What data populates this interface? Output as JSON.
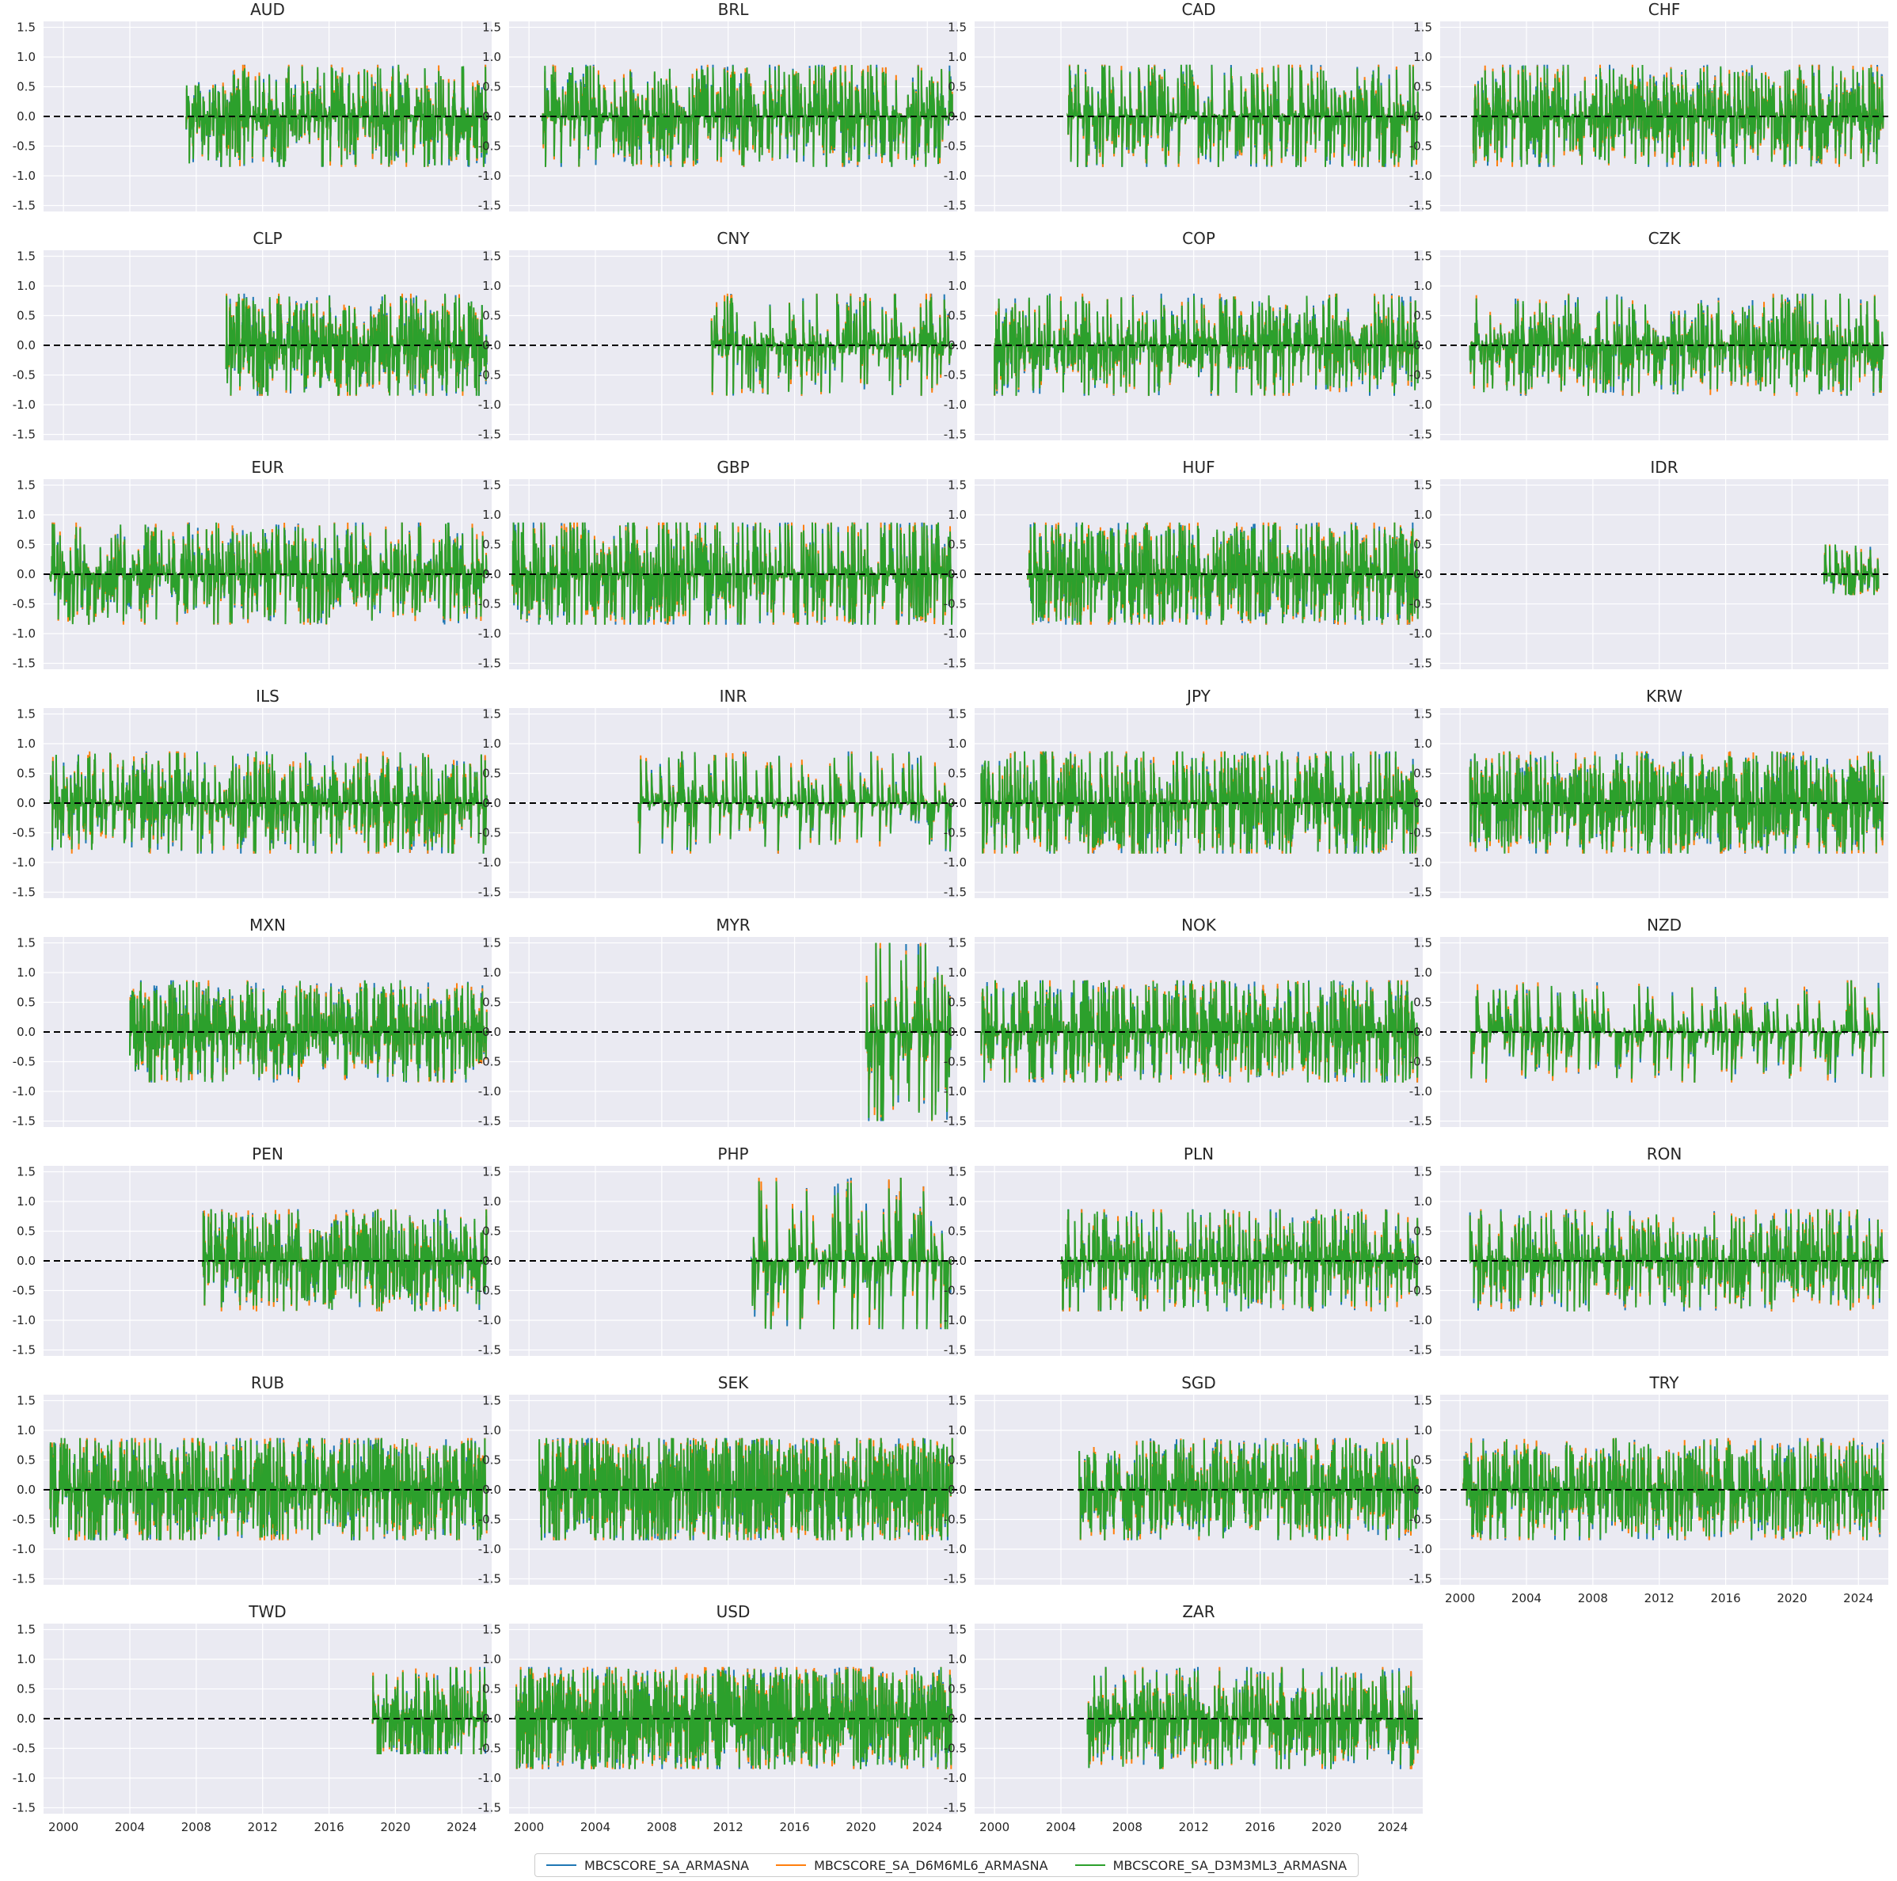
{
  "chart_data": {
    "type": "line",
    "layout": "small-multiples",
    "columns": 4,
    "shared_y_range": [
      -1.6,
      1.6
    ],
    "y_ticks": [
      -1.5,
      -1.0,
      -0.5,
      0.0,
      0.5,
      1.0,
      1.5
    ],
    "y_tick_labels": [
      "-1.5",
      "-1.0",
      "-0.5",
      "0.0",
      "0.5",
      "1.0",
      "1.5"
    ],
    "x_range": [
      1998.8,
      2025.8
    ],
    "x_ticks": [
      2000,
      2004,
      2008,
      2012,
      2016,
      2020,
      2024
    ],
    "x_tick_labels": [
      "2000",
      "2004",
      "2008",
      "2012",
      "2016",
      "2020",
      "2024"
    ],
    "reference_line": {
      "y": 0,
      "style": "dashed",
      "color": "#000000"
    },
    "grid": true,
    "background": "#eaeaf2",
    "legend": {
      "placement": "bottom-center"
    },
    "series": [
      {
        "name": "MBCSCORE_SA_ARMASNA",
        "color": "#1f77b4"
      },
      {
        "name": "MBCSCORE_SA_D6M6ML6_ARMASNA",
        "color": "#ff7f0e"
      },
      {
        "name": "MBCSCORE_SA_D3M3ML3_ARMASNA",
        "color": "#2ca02c"
      }
    ],
    "panels": [
      {
        "title": "AUD",
        "start": 2007.4,
        "end": 2025.5,
        "min": -0.85,
        "max": 0.87,
        "typical": 0.25,
        "density": 2.0,
        "spike": [
          2020.2,
          0.87
        ]
      },
      {
        "title": "BRL",
        "start": 2000.8,
        "end": 2025.5,
        "min": -0.85,
        "max": 0.87,
        "typical": 0.4,
        "density": 1.6,
        "spike": [
          2020.6,
          0.87
        ]
      },
      {
        "title": "CAD",
        "start": 2004.4,
        "end": 2025.5,
        "min": -0.85,
        "max": 0.87,
        "typical": 0.5,
        "density": 1.3,
        "spike": [
          2009.3,
          0.87
        ]
      },
      {
        "title": "CHF",
        "start": 2000.8,
        "end": 2025.5,
        "min": -0.85,
        "max": 0.87,
        "typical": 0.25,
        "density": 2.0,
        "spike": [
          2006.5,
          0.87
        ]
      },
      {
        "title": "CLP",
        "start": 2009.8,
        "end": 2025.5,
        "min": -0.85,
        "max": 0.87,
        "typical": 0.3,
        "density": 2.2,
        "spike": [
          2023.0,
          0.87
        ]
      },
      {
        "title": "CNY",
        "start": 2011.0,
        "end": 2025.5,
        "min": -0.85,
        "max": 0.87,
        "typical": 0.1,
        "density": 1.2,
        "spike": [
          2020.3,
          0.87
        ]
      },
      {
        "title": "COP",
        "start": 2000.0,
        "end": 2025.5,
        "min": -0.85,
        "max": 0.87,
        "typical": 0.2,
        "density": 1.8,
        "spike": [
          2020.6,
          0.87
        ]
      },
      {
        "title": "CZK",
        "start": 2000.6,
        "end": 2025.5,
        "min": -0.85,
        "max": 0.87,
        "typical": 0.25,
        "density": 1.5,
        "spike": [
          2022.9,
          0.87
        ]
      },
      {
        "title": "EUR",
        "start": 1999.2,
        "end": 2025.5,
        "min": -0.85,
        "max": 0.87,
        "typical": 0.3,
        "density": 1.5,
        "spike": [
          2009.2,
          0.87
        ]
      },
      {
        "title": "GBP",
        "start": 1999.0,
        "end": 2025.5,
        "min": -0.85,
        "max": 0.87,
        "typical": 0.55,
        "density": 1.6,
        "spike": [
          2009.5,
          0.87
        ]
      },
      {
        "title": "HUF",
        "start": 2002.0,
        "end": 2025.5,
        "min": -0.85,
        "max": 0.87,
        "typical": 0.4,
        "density": 2.2,
        "spike": [
          2005.3,
          0.87
        ]
      },
      {
        "title": "IDR",
        "start": 2021.9,
        "end": 2025.2,
        "min": -0.35,
        "max": 0.5,
        "typical": 0.25,
        "density": 1.4,
        "spike": [
          2022.0,
          0.5
        ]
      },
      {
        "title": "ILS",
        "start": 1999.2,
        "end": 2025.5,
        "min": -0.85,
        "max": 0.87,
        "typical": 0.3,
        "density": 1.6,
        "spike": [
          2011.6,
          0.87
        ]
      },
      {
        "title": "INR",
        "start": 2006.6,
        "end": 2025.5,
        "min": -0.85,
        "max": 0.87,
        "typical": 0.15,
        "density": 0.8,
        "spike": [
          2009.2,
          0.87
        ]
      },
      {
        "title": "JPY",
        "start": 1999.2,
        "end": 2025.5,
        "min": -0.85,
        "max": 0.87,
        "typical": 0.5,
        "density": 1.8,
        "spike": [
          2001.8,
          0.87
        ]
      },
      {
        "title": "KRW",
        "start": 2000.6,
        "end": 2025.5,
        "min": -0.85,
        "max": 0.87,
        "typical": 0.3,
        "density": 2.2,
        "spike": [
          2003.0,
          0.87
        ]
      },
      {
        "title": "MXN",
        "start": 2004.0,
        "end": 2025.5,
        "min": -0.85,
        "max": 0.87,
        "typical": 0.3,
        "density": 2.2,
        "spike": [
          2020.3,
          0.87
        ]
      },
      {
        "title": "MYR",
        "start": 2020.3,
        "end": 2025.4,
        "min": -1.5,
        "max": 1.5,
        "typical": 0.35,
        "density": 1.2,
        "spike": [
          2020.9,
          1.5
        ]
      },
      {
        "title": "NOK",
        "start": 1999.2,
        "end": 2025.5,
        "min": -0.85,
        "max": 0.87,
        "typical": 0.45,
        "density": 1.8,
        "spike": [
          2005.6,
          0.87
        ]
      },
      {
        "title": "NZD",
        "start": 2000.6,
        "end": 2025.5,
        "min": -0.85,
        "max": 0.87,
        "typical": 0.3,
        "density": 0.7,
        "spike": [
          2023.6,
          0.87
        ]
      },
      {
        "title": "PEN",
        "start": 2008.4,
        "end": 2025.5,
        "min": -0.85,
        "max": 0.87,
        "typical": 0.25,
        "density": 2.0,
        "spike": [
          2008.9,
          0.87
        ]
      },
      {
        "title": "PHP",
        "start": 2013.4,
        "end": 2025.4,
        "min": -1.15,
        "max": 1.4,
        "typical": 0.4,
        "density": 0.8,
        "spike": [
          2022.4,
          1.4
        ]
      },
      {
        "title": "PLN",
        "start": 2004.0,
        "end": 2025.5,
        "min": -0.85,
        "max": 0.87,
        "typical": 0.15,
        "density": 2.0,
        "spike": [
          2020.5,
          0.87
        ]
      },
      {
        "title": "RON",
        "start": 2000.6,
        "end": 2025.5,
        "min": -0.85,
        "max": 0.87,
        "typical": 0.25,
        "density": 1.6,
        "spike": [
          2020.4,
          0.87
        ]
      },
      {
        "title": "RUB",
        "start": 1999.2,
        "end": 2025.5,
        "min": -0.85,
        "max": 0.87,
        "typical": 0.45,
        "density": 2.4,
        "spike": [
          2008.4,
          0.87
        ]
      },
      {
        "title": "SEK",
        "start": 2000.6,
        "end": 2025.5,
        "min": -0.85,
        "max": 0.87,
        "typical": 0.5,
        "density": 2.8,
        "spike": [
          2008.6,
          0.87
        ]
      },
      {
        "title": "SGD",
        "start": 2005.1,
        "end": 2025.5,
        "min": -0.85,
        "max": 0.87,
        "typical": 0.3,
        "density": 2.0,
        "spike": [
          2009.4,
          0.8
        ]
      },
      {
        "title": "TRY",
        "start": 2000.2,
        "end": 2025.5,
        "min": -0.85,
        "max": 0.87,
        "typical": 0.35,
        "density": 2.0,
        "spike": [
          2009.4,
          0.87
        ]
      },
      {
        "title": "TWD",
        "start": 2018.6,
        "end": 2025.5,
        "min": -0.6,
        "max": 0.87,
        "typical": 0.25,
        "density": 2.0,
        "spike": [
          2023.3,
          0.87
        ]
      },
      {
        "title": "USD",
        "start": 1999.2,
        "end": 2025.5,
        "min": -0.85,
        "max": 0.87,
        "typical": 0.4,
        "density": 3.0,
        "spike": [
          2020.6,
          0.87
        ]
      },
      {
        "title": "ZAR",
        "start": 2005.6,
        "end": 2025.5,
        "min": -0.85,
        "max": 0.87,
        "typical": 0.25,
        "density": 1.8,
        "spike": [
          2020.6,
          0.87
        ]
      }
    ]
  }
}
